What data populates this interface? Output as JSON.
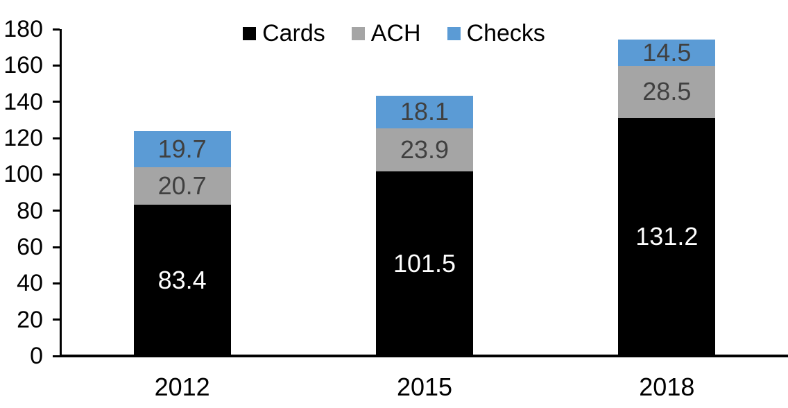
{
  "chart_data": {
    "type": "bar",
    "stacked": true,
    "title": "",
    "xlabel": "",
    "ylabel": "",
    "categories": [
      "2012",
      "2015",
      "2018"
    ],
    "series": [
      {
        "name": "Cards",
        "color": "#000000",
        "label_color": "#ffffff",
        "values": [
          83.4,
          101.5,
          131.2
        ]
      },
      {
        "name": "ACH",
        "color": "#a5a5a5",
        "label_color": "#404040",
        "values": [
          20.7,
          23.9,
          28.5
        ]
      },
      {
        "name": "Checks",
        "color": "#5b9bd5",
        "label_color": "#404040",
        "values": [
          19.7,
          18.1,
          14.5
        ]
      }
    ],
    "ylim": [
      0,
      180
    ],
    "yticks": [
      0,
      20,
      40,
      60,
      80,
      100,
      120,
      140,
      160,
      180
    ],
    "grid": false,
    "axis_color": "#000000",
    "legend_position": "top-center",
    "value_format": "one-decimal"
  }
}
